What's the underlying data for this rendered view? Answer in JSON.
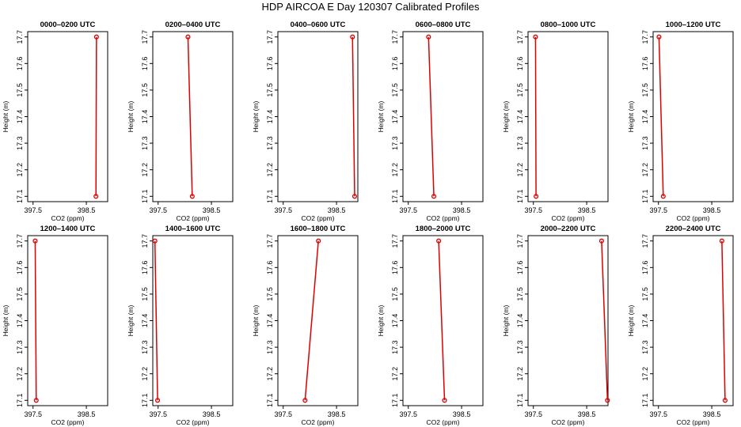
{
  "title": "HDP AIRCOA E  Day 120307  Calibrated Profiles",
  "style": {
    "line_color": "#dd0000",
    "frame_color": "#000000"
  },
  "chart_data": [
    {
      "type": "line",
      "title": "0000–0200 UTC",
      "xlabel": "CO2 (ppm)",
      "ylabel": "Height (m)",
      "xlim": [
        397.4,
        398.9
      ],
      "ylim": [
        17.08,
        17.72
      ],
      "x_ticks": [
        "397.5",
        "398.5"
      ],
      "y_ticks": [
        "17.1",
        "17.2",
        "17.3",
        "17.4",
        "17.5",
        "17.6",
        "17.7"
      ],
      "points": [
        {
          "x": 398.69,
          "y": 17.7
        },
        {
          "x": 398.68,
          "y": 17.1
        }
      ]
    },
    {
      "type": "line",
      "title": "0200–0400 UTC",
      "xlabel": "CO2 (ppm)",
      "ylabel": "Height (m)",
      "xlim": [
        397.4,
        398.9
      ],
      "ylim": [
        17.08,
        17.72
      ],
      "x_ticks": [
        "397.5",
        "398.5"
      ],
      "y_ticks": [
        "17.1",
        "17.2",
        "17.3",
        "17.4",
        "17.5",
        "17.6",
        "17.7"
      ],
      "points": [
        {
          "x": 398.06,
          "y": 17.7
        },
        {
          "x": 398.14,
          "y": 17.1
        }
      ]
    },
    {
      "type": "line",
      "title": "0400–0600 UTC",
      "xlabel": "CO2 (ppm)",
      "ylabel": "Height (m)",
      "xlim": [
        397.4,
        398.9
      ],
      "ylim": [
        17.08,
        17.72
      ],
      "x_ticks": [
        "397.5",
        "398.5"
      ],
      "y_ticks": [
        "17.1",
        "17.2",
        "17.3",
        "17.4",
        "17.5",
        "17.6",
        "17.7"
      ],
      "points": [
        {
          "x": 398.8,
          "y": 17.7
        },
        {
          "x": 398.84,
          "y": 17.1
        }
      ]
    },
    {
      "type": "line",
      "title": "0600–0800 UTC",
      "xlabel": "CO2 (ppm)",
      "ylabel": "Height (m)",
      "xlim": [
        397.4,
        398.9
      ],
      "ylim": [
        17.08,
        17.72
      ],
      "x_ticks": [
        "397.5",
        "398.5"
      ],
      "y_ticks": [
        "17.1",
        "17.2",
        "17.3",
        "17.4",
        "17.5",
        "17.6",
        "17.7"
      ],
      "points": [
        {
          "x": 397.88,
          "y": 17.7
        },
        {
          "x": 397.98,
          "y": 17.1
        }
      ]
    },
    {
      "type": "line",
      "title": "0800–1000 UTC",
      "xlabel": "CO2 (ppm)",
      "ylabel": "Height (m)",
      "xlim": [
        397.4,
        398.9
      ],
      "ylim": [
        17.08,
        17.72
      ],
      "x_ticks": [
        "397.5",
        "398.5"
      ],
      "y_ticks": [
        "17.1",
        "17.2",
        "17.3",
        "17.4",
        "17.5",
        "17.6",
        "17.7"
      ],
      "points": [
        {
          "x": 397.54,
          "y": 17.7
        },
        {
          "x": 397.55,
          "y": 17.1
        }
      ]
    },
    {
      "type": "line",
      "title": "1000–1200 UTC",
      "xlabel": "CO2 (ppm)",
      "ylabel": "Height (m)",
      "xlim": [
        397.4,
        398.9
      ],
      "ylim": [
        17.08,
        17.72
      ],
      "x_ticks": [
        "397.5",
        "398.5"
      ],
      "y_ticks": [
        "17.1",
        "17.2",
        "17.3",
        "17.4",
        "17.5",
        "17.6",
        "17.7"
      ],
      "points": [
        {
          "x": 397.51,
          "y": 17.7
        },
        {
          "x": 397.59,
          "y": 17.1
        }
      ]
    },
    {
      "type": "line",
      "title": "1200–1400 UTC",
      "xlabel": "CO2 (ppm)",
      "ylabel": "Height (m)",
      "xlim": [
        397.4,
        398.9
      ],
      "ylim": [
        17.08,
        17.72
      ],
      "x_ticks": [
        "397.5",
        "398.5"
      ],
      "y_ticks": [
        "17.1",
        "17.2",
        "17.3",
        "17.4",
        "17.5",
        "17.6",
        "17.7"
      ],
      "points": [
        {
          "x": 397.54,
          "y": 17.7
        },
        {
          "x": 397.56,
          "y": 17.1
        }
      ]
    },
    {
      "type": "line",
      "title": "1400–1600 UTC",
      "xlabel": "CO2 (ppm)",
      "ylabel": "Height (m)",
      "xlim": [
        397.4,
        398.9
      ],
      "ylim": [
        17.08,
        17.72
      ],
      "x_ticks": [
        "397.5",
        "398.5"
      ],
      "y_ticks": [
        "17.1",
        "17.2",
        "17.3",
        "17.4",
        "17.5",
        "17.6",
        "17.7"
      ],
      "points": [
        {
          "x": 397.44,
          "y": 17.7
        },
        {
          "x": 397.49,
          "y": 17.1
        }
      ]
    },
    {
      "type": "line",
      "title": "1600–1800 UTC",
      "xlabel": "CO2 (ppm)",
      "ylabel": "Height (m)",
      "xlim": [
        397.4,
        398.9
      ],
      "ylim": [
        17.08,
        17.72
      ],
      "x_ticks": [
        "397.5",
        "398.5"
      ],
      "y_ticks": [
        "17.1",
        "17.2",
        "17.3",
        "17.4",
        "17.5",
        "17.6",
        "17.7"
      ],
      "points": [
        {
          "x": 398.16,
          "y": 17.7
        },
        {
          "x": 397.91,
          "y": 17.1
        }
      ]
    },
    {
      "type": "line",
      "title": "1800–2000 UTC",
      "xlabel": "CO2 (ppm)",
      "ylabel": "Height (m)",
      "xlim": [
        397.4,
        398.9
      ],
      "ylim": [
        17.08,
        17.72
      ],
      "x_ticks": [
        "397.5",
        "398.5"
      ],
      "y_ticks": [
        "17.1",
        "17.2",
        "17.3",
        "17.4",
        "17.5",
        "17.6",
        "17.7"
      ],
      "points": [
        {
          "x": 398.07,
          "y": 17.7
        },
        {
          "x": 398.18,
          "y": 17.1
        }
      ]
    },
    {
      "type": "line",
      "title": "2000–2200 UTC",
      "xlabel": "CO2 (ppm)",
      "ylabel": "Height (m)",
      "xlim": [
        397.4,
        398.9
      ],
      "ylim": [
        17.08,
        17.72
      ],
      "x_ticks": [
        "397.5",
        "398.5"
      ],
      "y_ticks": [
        "17.1",
        "17.2",
        "17.3",
        "17.4",
        "17.5",
        "17.6",
        "17.7"
      ],
      "points": [
        {
          "x": 398.78,
          "y": 17.7
        },
        {
          "x": 398.89,
          "y": 17.1
        }
      ]
    },
    {
      "type": "line",
      "title": "2200–2400 UTC",
      "xlabel": "CO2 (ppm)",
      "ylabel": "Height (m)",
      "xlim": [
        397.4,
        398.9
      ],
      "ylim": [
        17.08,
        17.72
      ],
      "x_ticks": [
        "397.5",
        "398.5"
      ],
      "y_ticks": [
        "17.1",
        "17.2",
        "17.3",
        "17.4",
        "17.5",
        "17.6",
        "17.7"
      ],
      "points": [
        {
          "x": 398.69,
          "y": 17.7
        },
        {
          "x": 398.75,
          "y": 17.1
        }
      ]
    }
  ]
}
